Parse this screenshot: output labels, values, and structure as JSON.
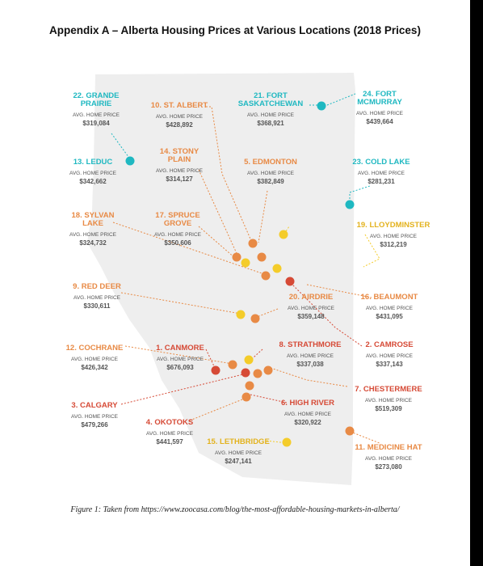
{
  "title": "Appendix A – Alberta Housing Prices at Various Locations (2018 Prices)",
  "caption": "Figure 1: Taken from https://www.zoocasa.com/blog/the-most-affordable-housing-markets-in-alberta/",
  "price_label": "AVG. HOME PRICE",
  "colors": {
    "teal": "#1fb8c1",
    "orange": "#e88a45",
    "red": "#d64a36",
    "yellow": "#f4cc2a",
    "province": "#eeeeee"
  },
  "locations": [
    {
      "rank": "22",
      "name_lines": [
        "22. GRANDE",
        "PRAIRIE"
      ],
      "price": "$319,084",
      "color": "teal"
    },
    {
      "rank": "10",
      "name_lines": [
        "10. ST. ALBERT"
      ],
      "price": "$428,892",
      "color": "orange"
    },
    {
      "rank": "21",
      "name_lines": [
        "21. FORT",
        "SASKATCHEWAN"
      ],
      "price": "$368,921",
      "color": "teal"
    },
    {
      "rank": "24",
      "name_lines": [
        "24. FORT",
        "MCMURRAY"
      ],
      "price": "$439,664",
      "color": "teal"
    },
    {
      "rank": "13",
      "name_lines": [
        "13. LEDUC"
      ],
      "price": "$342,662",
      "color": "teal"
    },
    {
      "rank": "14",
      "name_lines": [
        "14. STONY",
        "PLAIN"
      ],
      "price": "$314,127",
      "color": "orange"
    },
    {
      "rank": "5",
      "name_lines": [
        "5. EDMONTON"
      ],
      "price": "$382,849",
      "color": "orange"
    },
    {
      "rank": "23",
      "name_lines": [
        "23. COLD LAKE"
      ],
      "price": "$281,231",
      "color": "teal"
    },
    {
      "rank": "18",
      "name_lines": [
        "18. SYLVAN",
        "LAKE"
      ],
      "price": "$324,732",
      "color": "orange"
    },
    {
      "rank": "17",
      "name_lines": [
        "17. SPRUCE",
        "GROVE"
      ],
      "price": "$350,606",
      "color": "orange"
    },
    {
      "rank": "19",
      "name_lines": [
        "19. LLOYDMINSTER"
      ],
      "price": "$312,219",
      "color": "yellow"
    },
    {
      "rank": "9",
      "name_lines": [
        "9. RED DEER"
      ],
      "price": "$330,611",
      "color": "orange"
    },
    {
      "rank": "20",
      "name_lines": [
        "20. AIRDRIE"
      ],
      "price": "$359,148",
      "color": "orange"
    },
    {
      "rank": "16",
      "name_lines": [
        "16. BEAUMONT"
      ],
      "price": "$431,095",
      "color": "orange"
    },
    {
      "rank": "12",
      "name_lines": [
        "12. COCHRANE"
      ],
      "price": "$426,342",
      "color": "orange"
    },
    {
      "rank": "1",
      "name_lines": [
        "1. CANMORE"
      ],
      "price": "$676,093",
      "color": "red"
    },
    {
      "rank": "8",
      "name_lines": [
        "8. STRATHMORE"
      ],
      "price": "$337,038",
      "color": "red"
    },
    {
      "rank": "2",
      "name_lines": [
        "2. CAMROSE"
      ],
      "price": "$337,143",
      "color": "red"
    },
    {
      "rank": "7",
      "name_lines": [
        "7. CHESTERMERE"
      ],
      "price": "$519,309",
      "color": "red"
    },
    {
      "rank": "3",
      "name_lines": [
        "3. CALGARY"
      ],
      "price": "$479,266",
      "color": "red"
    },
    {
      "rank": "6",
      "name_lines": [
        "6. HIGH RIVER"
      ],
      "price": "$320,922",
      "color": "red"
    },
    {
      "rank": "4",
      "name_lines": [
        "4. OKOTOKS"
      ],
      "price": "$441,597",
      "color": "red"
    },
    {
      "rank": "15",
      "name_lines": [
        "15. LETHBRIDGE"
      ],
      "price": "$247,141",
      "color": "yellow"
    },
    {
      "rank": "11",
      "name_lines": [
        "11. MEDICINE HAT"
      ],
      "price": "$273,080",
      "color": "orange"
    }
  ]
}
